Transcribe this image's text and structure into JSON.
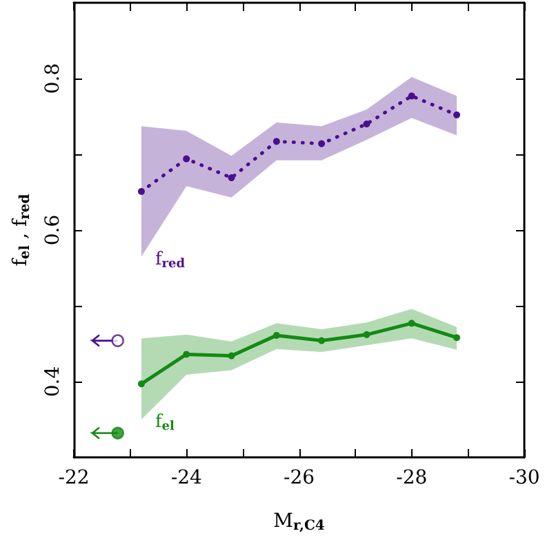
{
  "chart_data": {
    "type": "line",
    "xlabel": "M$_{r,C4}$",
    "ylabel": "f$_{el}$ , f$_{red}$",
    "xlim": [
      -22,
      -30
    ],
    "ylim": [
      0.3,
      0.9
    ],
    "xticks": [
      -22,
      {
        "value": -23,
        "label": null
      },
      -24,
      {
        "value": -25,
        "label": null
      },
      -26,
      {
        "value": -27,
        "label": null
      },
      -28,
      {
        "value": -29,
        "label": null
      },
      -30
    ],
    "yticks": [
      0.4,
      {
        "value": 0.5,
        "label": null
      },
      0.6,
      {
        "value": 0.7,
        "label": null
      },
      0.8
    ],
    "x": [
      -23.2,
      -24.0,
      -24.8,
      -25.6,
      -26.4,
      -27.2,
      -28.0,
      -28.8
    ],
    "series": [
      {
        "name": "f$_{red}$",
        "color": "#4b0f8c",
        "line_style": "dotted",
        "marker": "circle",
        "values": [
          0.651,
          0.694,
          0.669,
          0.717,
          0.714,
          0.74,
          0.777,
          0.752
        ],
        "lower": [
          0.565,
          0.658,
          0.643,
          0.692,
          0.692,
          0.719,
          0.748,
          0.725
        ],
        "upper": [
          0.737,
          0.731,
          0.698,
          0.742,
          0.737,
          0.759,
          0.802,
          0.777
        ]
      },
      {
        "name": "f$_{el}$",
        "color": "#138a13",
        "line_style": "solid",
        "marker": "circle",
        "values": [
          0.397,
          0.436,
          0.434,
          0.461,
          0.454,
          0.462,
          0.477,
          0.458
        ],
        "lower": [
          0.35,
          0.409,
          0.415,
          0.443,
          0.439,
          0.448,
          0.457,
          0.442
        ],
        "upper": [
          0.457,
          0.462,
          0.453,
          0.477,
          0.469,
          0.478,
          0.496,
          0.472
        ]
      },
      {
        "type": "scatter",
        "color": "#4b0f8c",
        "marker": "circle",
        "x": [
          -22.78
        ],
        "values": [
          0.454
        ],
        "xerrors": [
          [
            -22.78,
            -22.33
          ]
        ]
      },
      {
        "type": "scatter",
        "color": "#138a13",
        "marker": "circle",
        "x": [
          -22.78
        ],
        "values": [
          0.332
        ],
        "xerrors": [
          [
            -22.78,
            -22.33
          ]
        ]
      }
    ],
    "grid": false
  }
}
